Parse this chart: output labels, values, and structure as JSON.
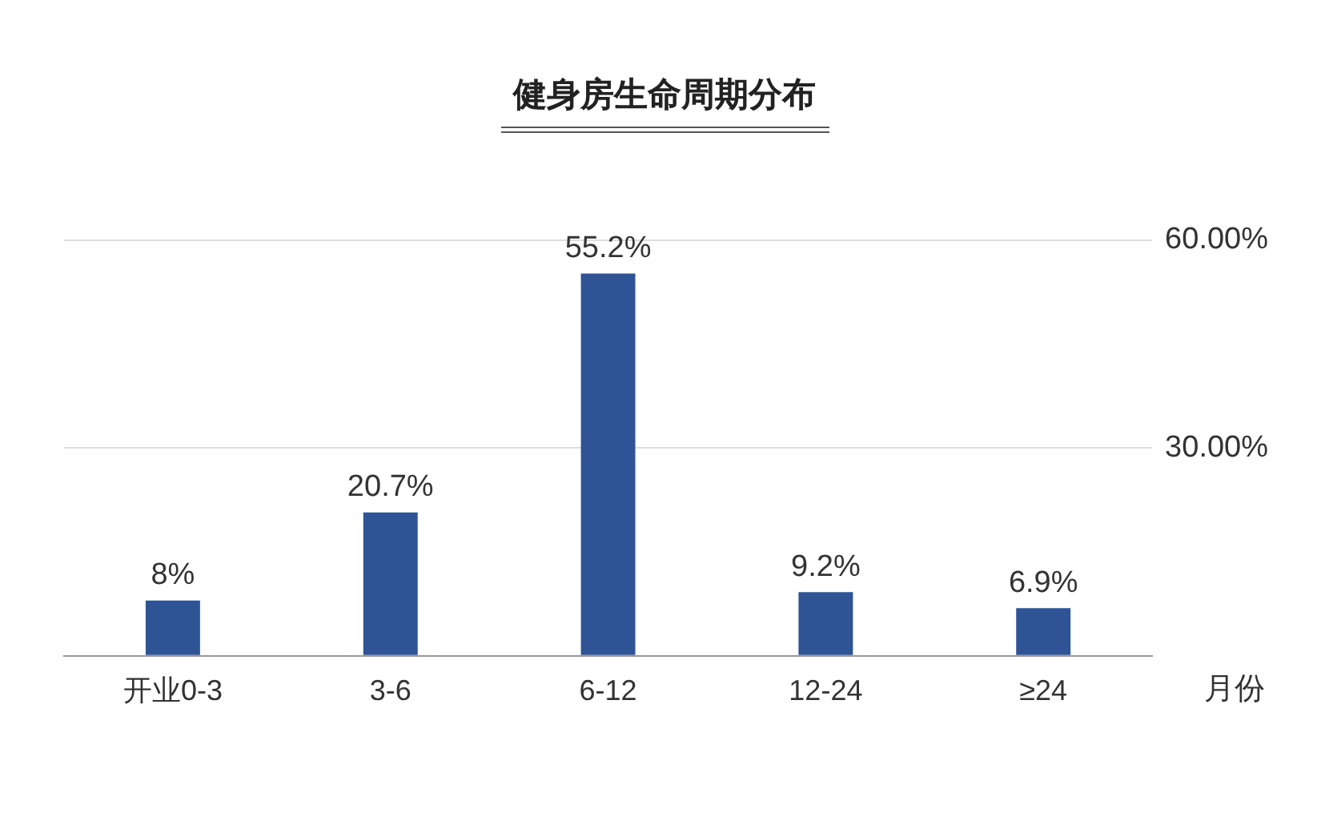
{
  "chart_data": {
    "type": "bar",
    "title": "健身房生命周期分布",
    "xlabel": "月份",
    "categories": [
      "开业0-3",
      "3-6",
      "6-12",
      "12-24",
      "≥24"
    ],
    "values": [
      8,
      20.7,
      55.2,
      9.2,
      6.9
    ],
    "value_labels": [
      "8%",
      "20.7%",
      "55.2%",
      "9.2%",
      "6.9%"
    ],
    "color": "#2f5496",
    "ylim": [
      0,
      60
    ],
    "yticks": [
      {
        "value": 0,
        "label": null
      },
      {
        "value": 30,
        "label": "30.00%"
      },
      {
        "value": 60,
        "label": "60.00%"
      }
    ],
    "grid": "y"
  }
}
